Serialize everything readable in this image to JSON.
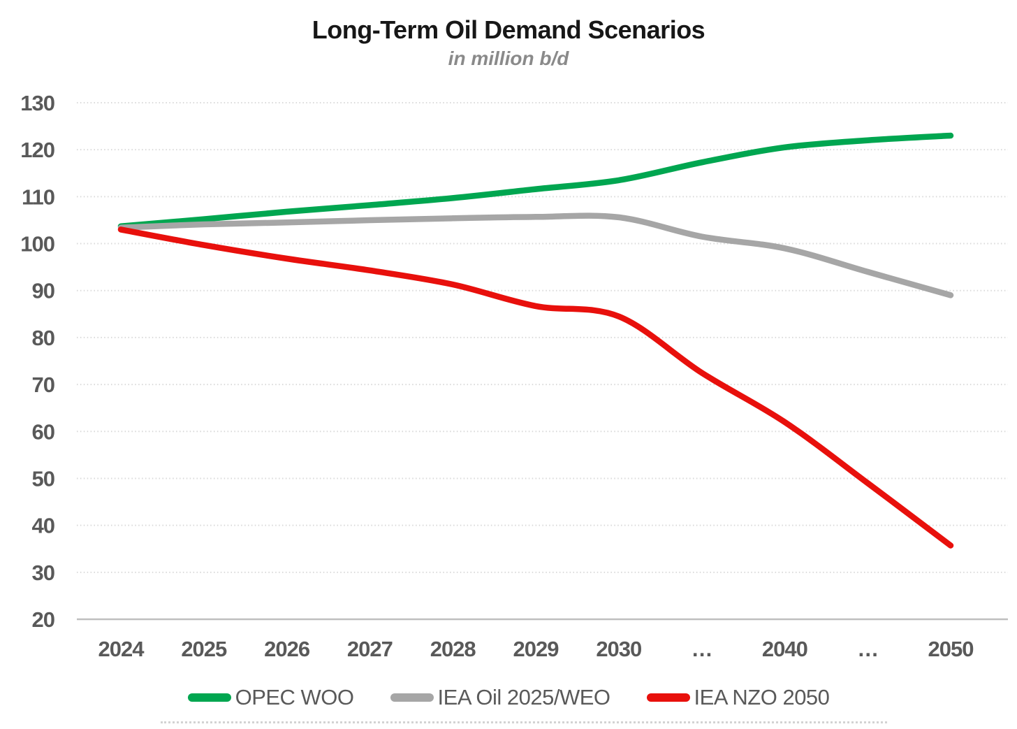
{
  "chart_data": {
    "type": "line",
    "title": "Long-Term Oil Demand Scenarios",
    "subtitle": "in million b/d",
    "units": "million b/d",
    "x_tick_labels": [
      "2024",
      "2025",
      "2026",
      "2027",
      "2028",
      "2029",
      "2030",
      "…",
      "2040",
      "…",
      "2050"
    ],
    "y_ticks": [
      20,
      30,
      40,
      50,
      60,
      70,
      80,
      90,
      100,
      110,
      120,
      130
    ],
    "ylim": [
      20,
      130
    ],
    "grid": "horizontal-dotted",
    "legend_position": "bottom",
    "series": [
      {
        "name": "OPEC WOO",
        "color": "#00A650",
        "values": [
          103.7,
          105.2,
          106.8,
          108.2,
          109.7,
          111.6,
          113.5,
          117.3,
          120.5,
          122.0,
          123.0
        ]
      },
      {
        "name": "IEA Oil 2025/WEO",
        "color": "#A6A6A6",
        "values": [
          103.4,
          104.1,
          104.5,
          105.0,
          105.4,
          105.7,
          105.6,
          101.5,
          99.0,
          94.0,
          89.0
        ]
      },
      {
        "name": "IEA NZO 2050",
        "color": "#E8100C",
        "values": [
          103.0,
          99.7,
          96.8,
          94.3,
          91.3,
          86.7,
          84.5,
          72.5,
          62.0,
          49.0,
          35.7
        ]
      }
    ],
    "colors": {
      "title": "#171717",
      "subtitle": "#8A8A8A",
      "tick_labels": "#595959",
      "gridline": "#D9D9D9",
      "axis_line": "#BFBFBF"
    }
  }
}
